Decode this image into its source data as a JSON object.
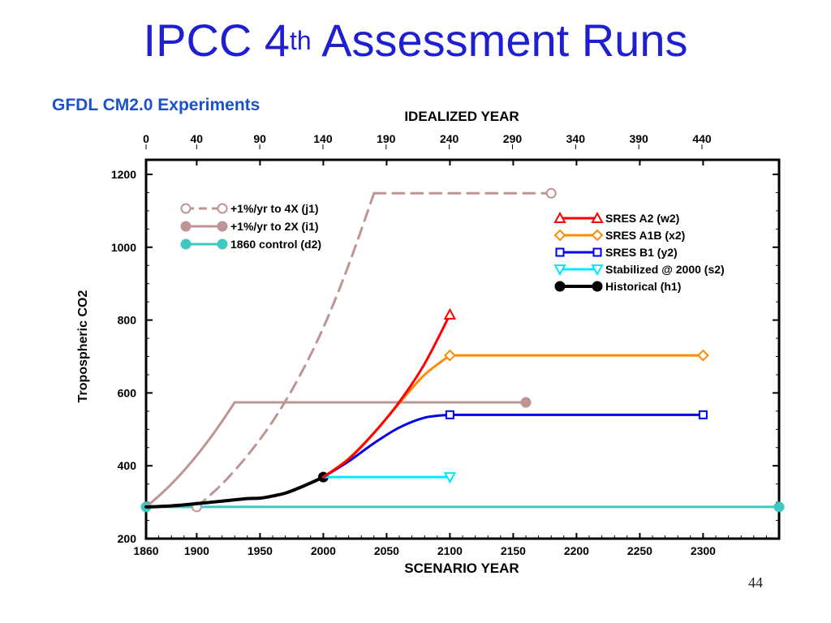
{
  "slide": {
    "title_main": "IPCC 4",
    "title_sup": "th",
    "title_rest": " Assessment Runs",
    "page_number": "44"
  },
  "colors": {
    "title": "#1f1fd2",
    "panel_title": "#1b52c9",
    "j1": "#c09494",
    "i1": "#c09494",
    "d2": "#40c8c0",
    "w2": "#ff0000",
    "x2": "#ff8c00",
    "y2": "#0000ee",
    "s2": "#00e8ff",
    "h1": "#000000"
  },
  "chart_data": {
    "type": "line",
    "title": "GFDL CM2.0 Experiments",
    "xlabel": "SCENARIO YEAR",
    "x2label": "IDEALIZED YEAR",
    "ylabel": "Tropospheric CO2",
    "xlim": [
      1860,
      2360
    ],
    "ylim": [
      200,
      1240
    ],
    "xticks": [
      1860,
      1900,
      1950,
      2000,
      2050,
      2100,
      2150,
      2200,
      2250,
      2300
    ],
    "xtick_labels": [
      "1860",
      "1900",
      "1950",
      "2000",
      "2050",
      "2100",
      "2150",
      "2200",
      "2250",
      "2300"
    ],
    "yticks": [
      200,
      400,
      600,
      800,
      1000,
      1200
    ],
    "ytick_labels": [
      "200",
      "400",
      "600",
      "800",
      "1000",
      "1200"
    ],
    "x2ticks": [
      0,
      40,
      90,
      140,
      190,
      240,
      290,
      340,
      390,
      440
    ],
    "x2tick_labels": [
      "0",
      "40",
      "90",
      "140",
      "190",
      "240",
      "290",
      "340",
      "390",
      "440"
    ],
    "grid": false,
    "legend_left": [
      {
        "id": "j1",
        "label": "+1%/yr to 4X (j1)"
      },
      {
        "id": "i1",
        "label": "+1%/yr to 2X (i1)"
      },
      {
        "id": "d2",
        "label": "1860 control (d2)"
      }
    ],
    "legend_right": [
      {
        "id": "w2",
        "label": "SRES A2 (w2)"
      },
      {
        "id": "x2",
        "label": "SRES A1B (x2)"
      },
      {
        "id": "y2",
        "label": "SRES B1 (y2)"
      },
      {
        "id": "s2",
        "label": "Stabilized @ 2000 (s2)"
      },
      {
        "id": "h1",
        "label": "Historical (h1)"
      }
    ],
    "series": [
      {
        "id": "d2",
        "label": "1860 control (d2)",
        "style": "solid",
        "marker": "dot",
        "width": 3,
        "x": [
          1860,
          2360
        ],
        "y": [
          287,
          287
        ],
        "markers": [
          1860,
          2360
        ]
      },
      {
        "id": "i1",
        "label": "+1%/yr to 2X (i1)",
        "style": "solid",
        "marker": "dot",
        "width": 3,
        "x": [
          1860,
          1870,
          1880,
          1890,
          1900,
          1910,
          1920,
          1930,
          2000,
          2100,
          2160
        ],
        "y": [
          287,
          317,
          350,
          387,
          428,
          473,
          522,
          574,
          574,
          574,
          574
        ],
        "markers": [
          2160
        ]
      },
      {
        "id": "j1",
        "label": "+1%/yr to 4X (j1)",
        "style": "dashed",
        "marker": "circle",
        "width": 3,
        "x": [
          1900,
          1920,
          1940,
          1960,
          1980,
          2000,
          2020,
          2040,
          2100,
          2180
        ],
        "y": [
          287,
          350,
          428,
          522,
          638,
          779,
          951,
          1148,
          1148,
          1148
        ],
        "markers": [
          1900,
          2180
        ]
      },
      {
        "id": "h1",
        "label": "Historical (h1)",
        "style": "solid",
        "marker": "dot",
        "width": 4,
        "x": [
          1860,
          1880,
          1900,
          1920,
          1940,
          1950,
          1960,
          1970,
          1980,
          1990,
          2000
        ],
        "y": [
          287,
          290,
          296,
          303,
          310,
          311,
          317,
          325,
          338,
          353,
          369
        ],
        "markers": [
          2000
        ]
      },
      {
        "id": "s2",
        "label": "Stabilized @ 2000 (s2)",
        "style": "solid",
        "marker": "tri-down",
        "width": 3,
        "x": [
          2000,
          2100
        ],
        "y": [
          369,
          369
        ],
        "markers": [
          2100
        ]
      },
      {
        "id": "y2",
        "label": "SRES B1 (y2)",
        "style": "solid",
        "marker": "square",
        "width": 3,
        "x": [
          2000,
          2020,
          2040,
          2060,
          2080,
          2100,
          2300
        ],
        "y": [
          369,
          412,
          462,
          505,
          532,
          540,
          540
        ],
        "markers": [
          2100,
          2300
        ]
      },
      {
        "id": "x2",
        "label": "SRES A1B (x2)",
        "style": "solid",
        "marker": "diamond",
        "width": 3,
        "x": [
          2000,
          2020,
          2040,
          2060,
          2080,
          2100,
          2300
        ],
        "y": [
          369,
          420,
          490,
          572,
          650,
          703,
          703
        ],
        "markers": [
          2100,
          2300
        ]
      },
      {
        "id": "w2",
        "label": "SRES A2 (w2)",
        "style": "solid",
        "marker": "triangle",
        "width": 3,
        "x": [
          2000,
          2020,
          2040,
          2060,
          2080,
          2100
        ],
        "y": [
          369,
          418,
          490,
          575,
          680,
          815
        ],
        "markers": [
          2100
        ]
      }
    ]
  }
}
